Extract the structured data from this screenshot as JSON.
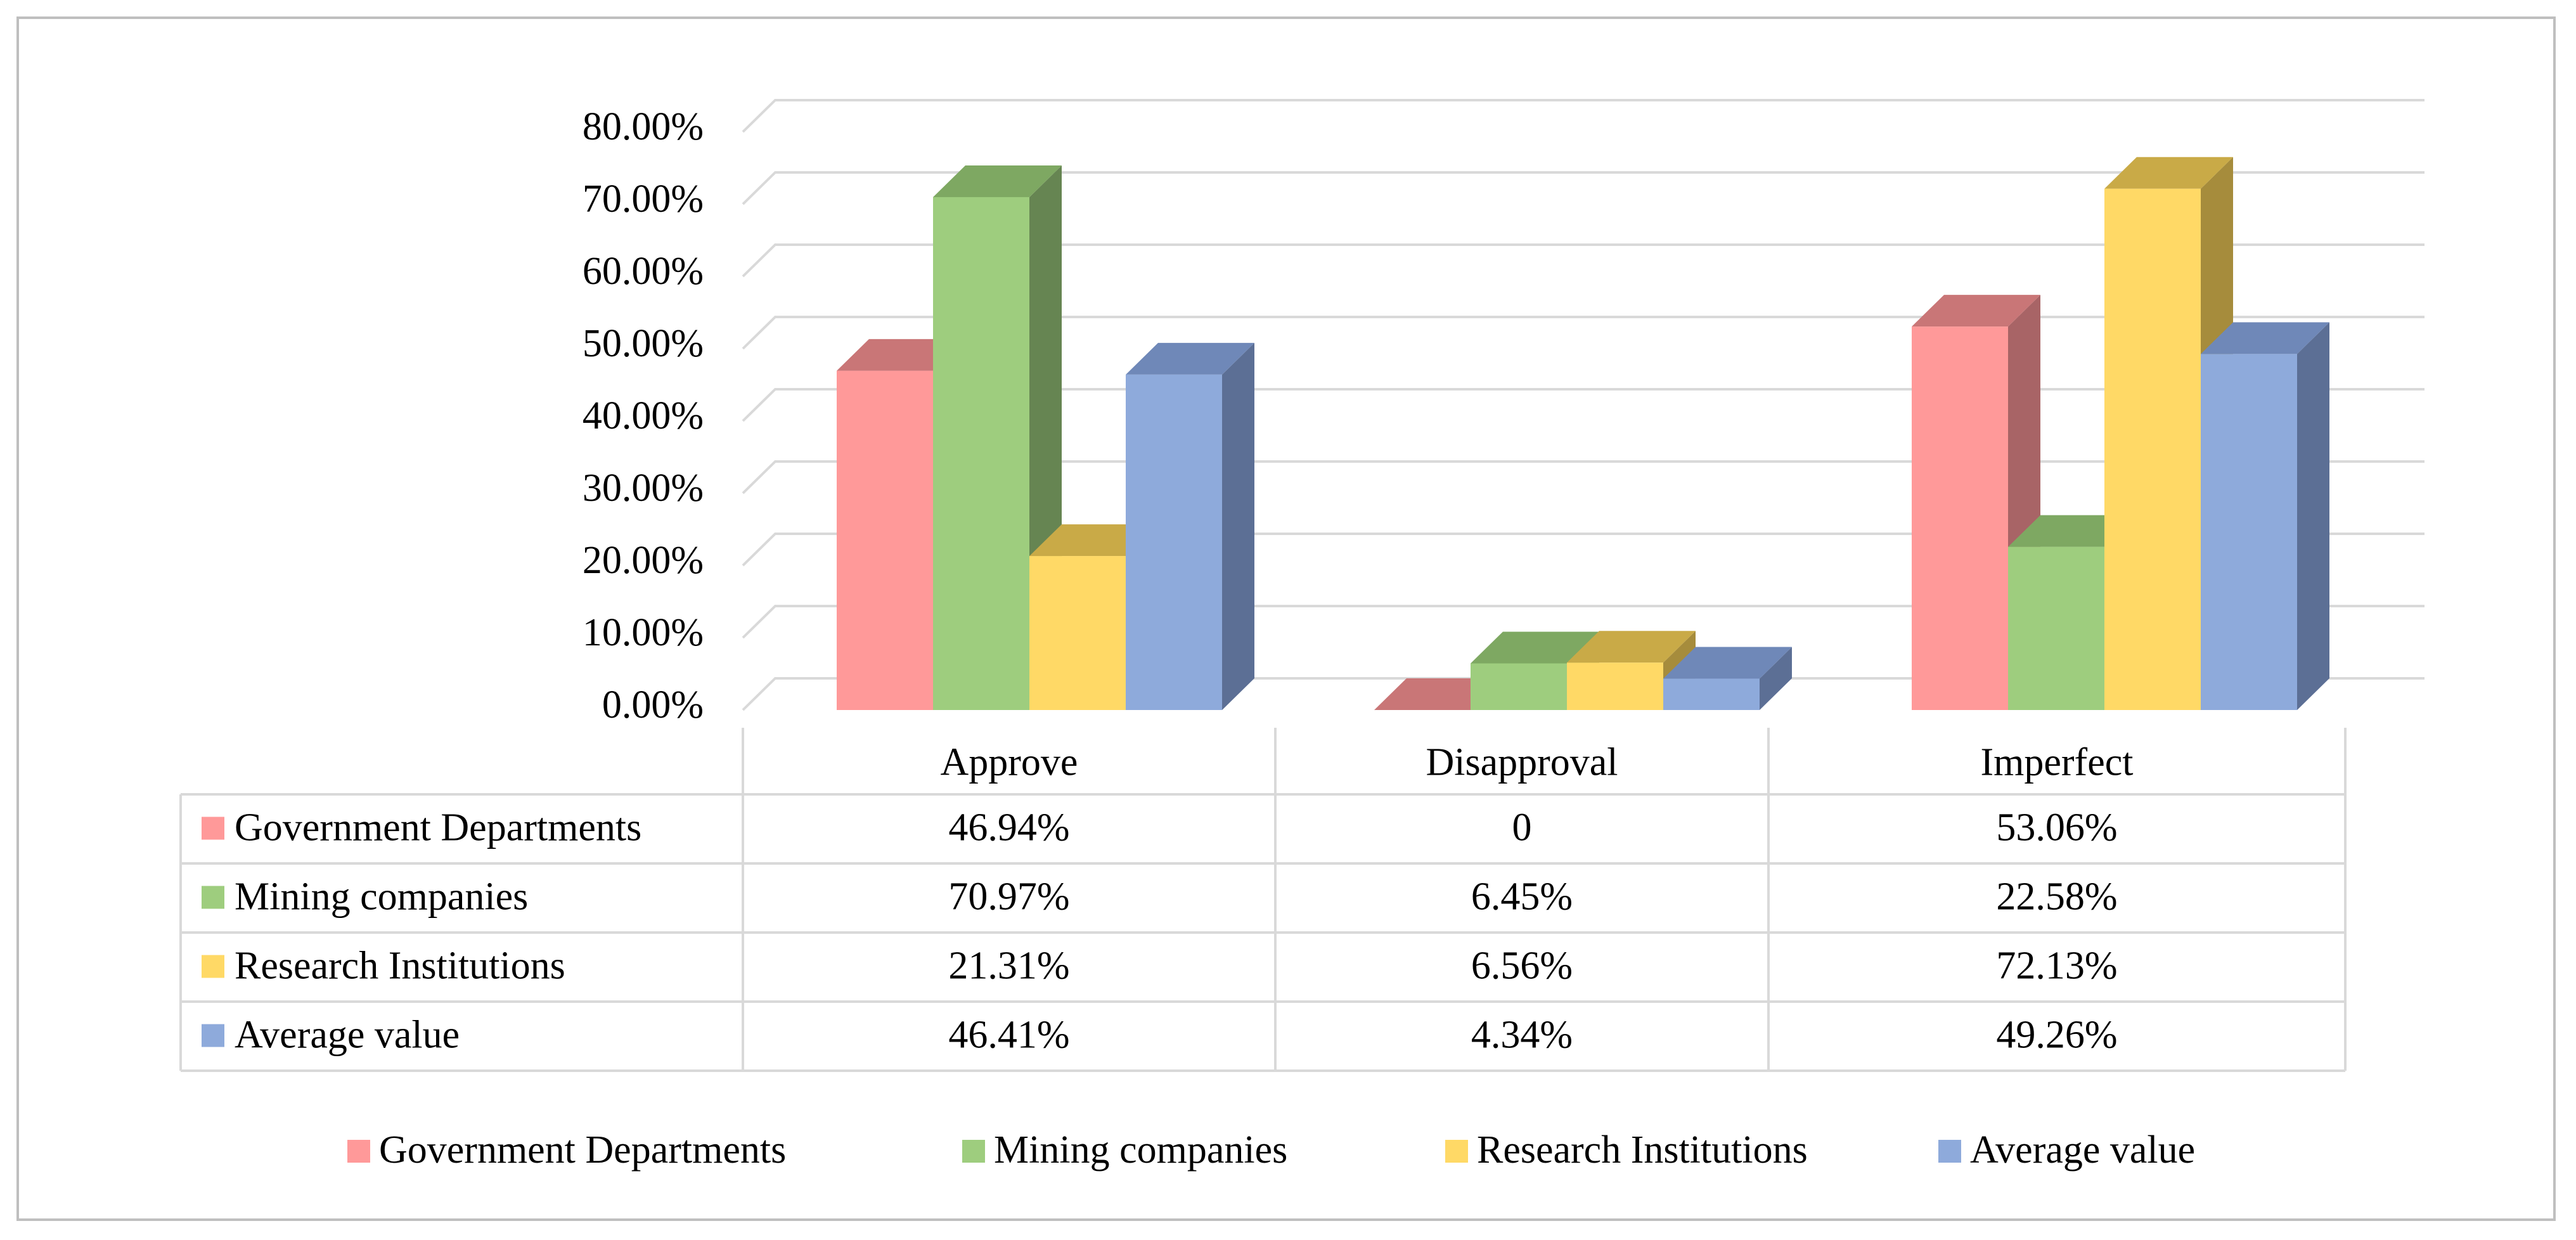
{
  "chart_data": {
    "type": "bar",
    "variant": "3d-clustered-column-with-data-table",
    "title": "",
    "xlabel": "",
    "ylabel": "",
    "ylim": [
      0,
      80
    ],
    "y_ticks": [
      "0.00%",
      "10.00%",
      "20.00%",
      "30.00%",
      "40.00%",
      "50.00%",
      "60.00%",
      "70.00%",
      "80.00%"
    ],
    "gridlines": true,
    "categories": [
      "Approve",
      "Disapproval",
      "Imperfect"
    ],
    "series": [
      {
        "name": "Government Departments",
        "values": [
          46.94,
          0,
          53.06
        ],
        "labels": [
          "46.94%",
          "0",
          "53.06%"
        ],
        "color": "#ff9999",
        "side_color": "#a86466",
        "top_color": "#c97677"
      },
      {
        "name": "Mining companies",
        "values": [
          70.97,
          6.45,
          22.58
        ],
        "labels": [
          "70.97%",
          "6.45%",
          "22.58%"
        ],
        "color": "#9ecd7e",
        "side_color": "#668552",
        "top_color": "#7ea862"
      },
      {
        "name": "Research Institutions",
        "values": [
          21.31,
          6.56,
          72.13
        ],
        "labels": [
          "21.31%",
          "6.56%",
          "72.13%"
        ],
        "color": "#ffd966",
        "side_color": "#a68c3c",
        "top_color": "#c9aa47"
      },
      {
        "name": "Average value",
        "values": [
          46.41,
          4.34,
          49.26
        ],
        "labels": [
          "46.41%",
          "4.34%",
          "49.26%"
        ],
        "color": "#8eaadb",
        "side_color": "#5c6f95",
        "top_color": "#6f88b8"
      }
    ],
    "legend_position": "bottom"
  }
}
